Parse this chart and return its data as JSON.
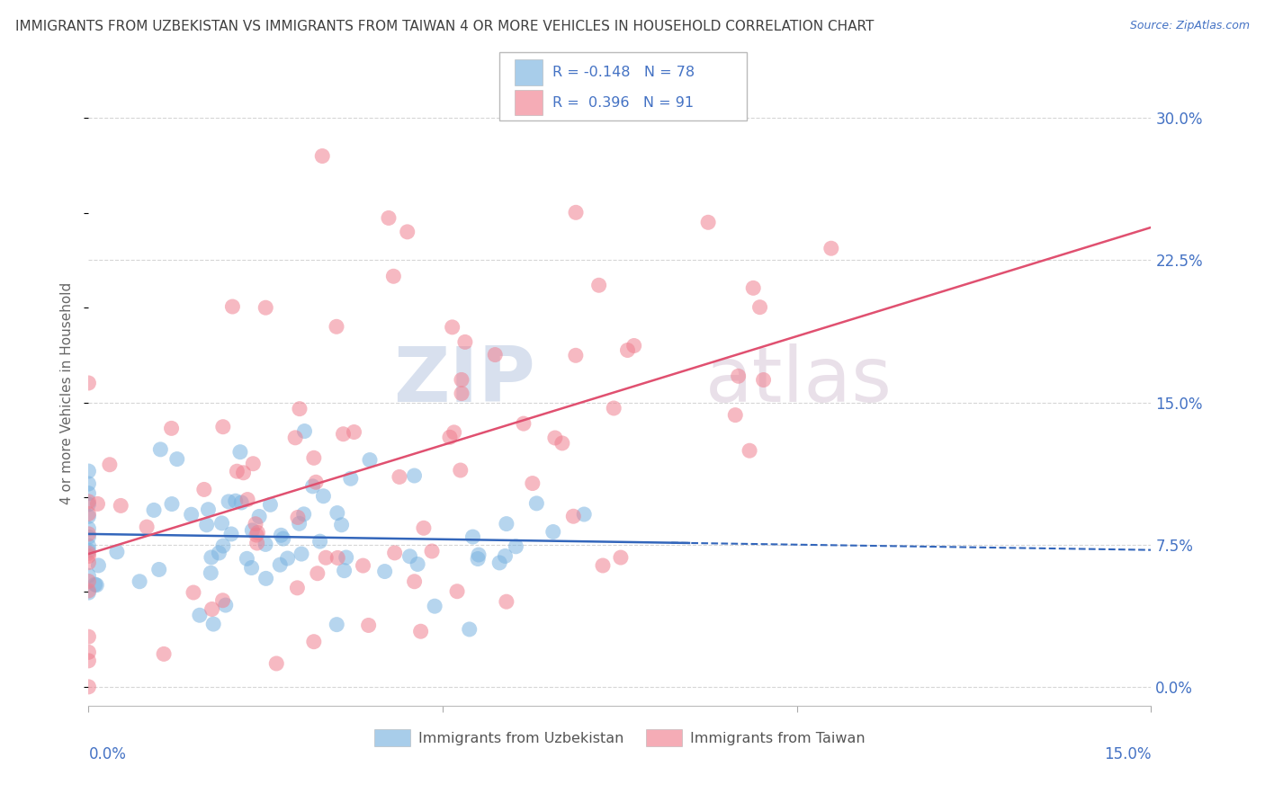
{
  "title": "IMMIGRANTS FROM UZBEKISTAN VS IMMIGRANTS FROM TAIWAN 4 OR MORE VEHICLES IN HOUSEHOLD CORRELATION CHART",
  "source": "Source: ZipAtlas.com",
  "ylabel": "4 or more Vehicles in Household",
  "ytick_values": [
    0.0,
    0.075,
    0.15,
    0.225,
    0.3
  ],
  "ytick_labels": [
    "0.0%",
    "7.5%",
    "15.0%",
    "22.5%",
    "30.0%"
  ],
  "xlim": [
    0.0,
    0.15
  ],
  "ylim": [
    0.0,
    0.3
  ],
  "uzbekistan_color": "#7ab3e0",
  "taiwan_color": "#f08090",
  "uzbekistan_R": -0.148,
  "uzbekistan_N": 78,
  "taiwan_R": 0.396,
  "taiwan_N": 91,
  "legend_label_uzbekistan": "Immigrants from Uzbekistan",
  "legend_label_taiwan": "Immigrants from Taiwan",
  "watermark_zip": "ZIP",
  "watermark_atlas": "atlas",
  "background_color": "#ffffff",
  "grid_color": "#cccccc",
  "axis_label_color": "#4472c4",
  "title_color": "#404040",
  "legend_text_color": "#4472c4",
  "legend_box_color": "#333333"
}
